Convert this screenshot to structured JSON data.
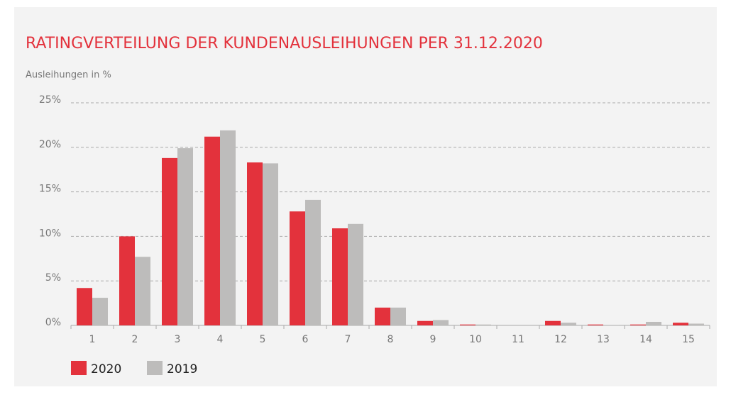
{
  "chart_data": {
    "type": "bar",
    "title": "RATINGVERTEILUNG DER KUNDENAUSLEIHUNGEN PER 31.12.2020",
    "y_label": "Ausleihungen in %",
    "categories": [
      "1",
      "2",
      "3",
      "4",
      "5",
      "6",
      "7",
      "8",
      "9",
      "10",
      "11",
      "12",
      "13",
      "14",
      "15"
    ],
    "series": [
      {
        "name": "2020",
        "color": "#e3323c",
        "values": [
          4.2,
          10.0,
          18.8,
          21.2,
          18.3,
          12.8,
          10.9,
          2.0,
          0.5,
          0.1,
          0,
          0.5,
          0.1,
          0.1,
          0.3
        ]
      },
      {
        "name": "2019",
        "color": "#bdbcbb",
        "values": [
          3.1,
          7.7,
          19.9,
          21.9,
          18.2,
          14.1,
          11.4,
          2.0,
          0.6,
          0.1,
          0,
          0.3,
          0.05,
          0.4,
          0.2
        ]
      }
    ],
    "ylim": [
      0,
      25
    ],
    "yticks": [
      {
        "value": 0,
        "label": "0%"
      },
      {
        "value": 5,
        "label": "5%"
      },
      {
        "value": 10,
        "label": "10%"
      },
      {
        "value": 15,
        "label": "15%"
      },
      {
        "value": 20,
        "label": "20%"
      },
      {
        "value": 25,
        "label": "25%"
      }
    ],
    "grid": true
  }
}
